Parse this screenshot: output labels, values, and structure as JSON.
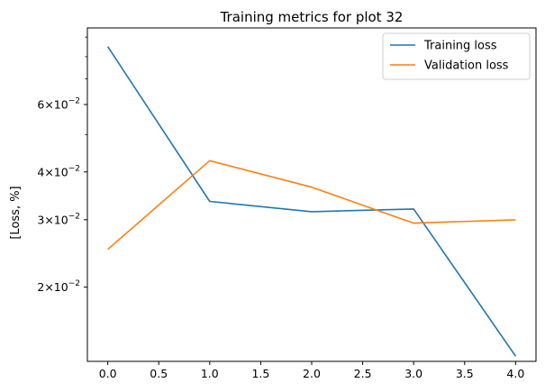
{
  "chart_data": {
    "type": "line",
    "title": "Training metrics for plot 32",
    "xlabel": "",
    "ylabel": "[Loss, %]",
    "y_scale": "log",
    "ylim": [
      0.0128,
      0.0951
    ],
    "xlim": [
      -0.2,
      4.2
    ],
    "x": [
      0.0,
      1.0,
      2.0,
      3.0,
      4.0
    ],
    "x_ticks": [
      0.0,
      0.5,
      1.0,
      1.5,
      2.0,
      2.5,
      3.0,
      3.5,
      4.0
    ],
    "x_tick_labels": [
      "0.0",
      "0.5",
      "1.0",
      "1.5",
      "2.0",
      "2.5",
      "3.0",
      "3.5",
      "4.0"
    ],
    "y_major_ticks": [
      {
        "value": 0.06,
        "mantissa": "6",
        "base": "10",
        "exp": "−2"
      },
      {
        "value": 0.04,
        "mantissa": "4",
        "base": "10",
        "exp": "−2"
      },
      {
        "value": 0.03,
        "mantissa": "3",
        "base": "10",
        "exp": "−2"
      },
      {
        "value": 0.02,
        "mantissa": "2",
        "base": "10",
        "exp": "−2"
      }
    ],
    "y_minor_ticks": [
      0.05,
      0.07,
      0.08,
      0.09
    ],
    "grid": false,
    "legend_position": "top-right",
    "series": [
      {
        "name": "Training loss",
        "color": "#1f77b4",
        "values": [
          0.085,
          0.0335,
          0.0315,
          0.032,
          0.0132
        ]
      },
      {
        "name": "Validation loss",
        "color": "#ff7f0e",
        "values": [
          0.0251,
          0.0428,
          0.0365,
          0.0294,
          0.03
        ]
      }
    ]
  }
}
